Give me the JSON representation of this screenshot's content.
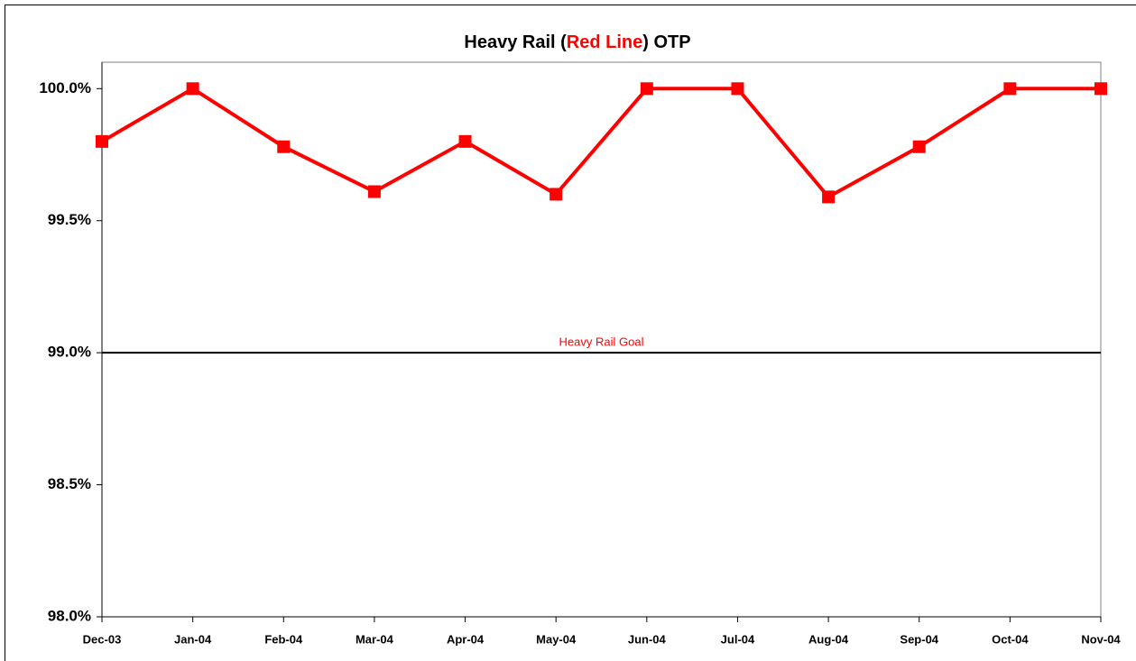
{
  "chart_data": {
    "type": "line",
    "title": [
      {
        "text": "Heavy Rail (",
        "color": "#000000"
      },
      {
        "text": "Red Line",
        "color": "#ff0000"
      },
      {
        "text": ") OTP",
        "color": "#000000"
      }
    ],
    "categories": [
      "Dec-03",
      "Jan-04",
      "Feb-04",
      "Mar-04",
      "Apr-04",
      "May-04",
      "Jun-04",
      "Jul-04",
      "Aug-04",
      "Sep-04",
      "Oct-04",
      "Nov-04"
    ],
    "values": [
      99.8,
      100,
      99.78,
      99.61,
      99.8,
      99.6,
      100,
      100,
      99.59,
      99.78,
      100,
      100
    ],
    "color": "#ff0000",
    "ylim": [
      98,
      100.1
    ],
    "yticks": [
      {
        "value": 98,
        "label": "98.0%"
      },
      {
        "value": 98.5,
        "label": "98.5%"
      },
      {
        "value": 99,
        "label": "99.0%"
      },
      {
        "value": 99.5,
        "label": "99.5%"
      },
      {
        "value": 100,
        "label": "100.0%"
      }
    ],
    "goal": {
      "value": 99,
      "label": "Heavy Rail Goal",
      "color": "#ff0000"
    }
  }
}
